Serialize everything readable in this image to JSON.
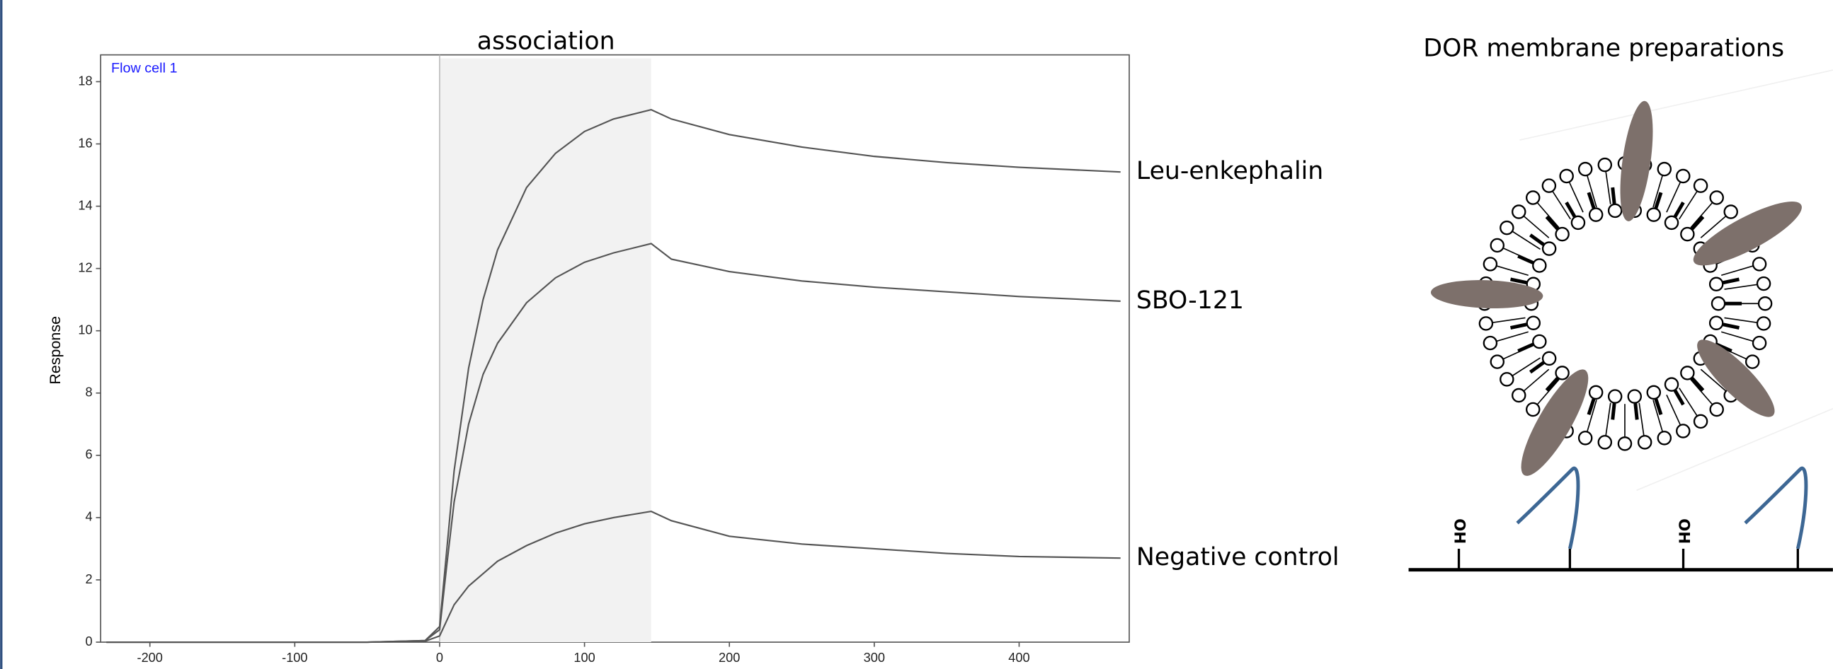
{
  "chart_data": {
    "type": "line",
    "title": "association",
    "annotation": "Flow cell 1",
    "y_label": "Response",
    "x": [
      -230,
      -50,
      -10,
      0,
      5,
      10,
      20,
      30,
      40,
      60,
      80,
      100,
      120,
      146,
      160,
      200,
      250,
      300,
      350,
      400,
      470
    ],
    "series": [
      {
        "name": "Leu-enkephalin",
        "color": "#555555",
        "values": [
          0,
          0,
          0.05,
          0.5,
          3,
          5.5,
          8.8,
          11,
          12.6,
          14.6,
          15.7,
          16.4,
          16.8,
          17.1,
          16.8,
          16.3,
          15.9,
          15.6,
          15.4,
          15.25,
          15.1
        ]
      },
      {
        "name": "SBO-121",
        "color": "#555555",
        "values": [
          0,
          0,
          0.05,
          0.4,
          2.5,
          4.5,
          7,
          8.6,
          9.6,
          10.9,
          11.7,
          12.2,
          12.5,
          12.8,
          12.3,
          11.9,
          11.6,
          11.4,
          11.25,
          11.1,
          10.95
        ]
      },
      {
        "name": "Negative control",
        "color": "#555555",
        "values": [
          0,
          0,
          0.03,
          0.2,
          0.7,
          1.2,
          1.8,
          2.2,
          2.6,
          3.1,
          3.5,
          3.8,
          4.0,
          4.2,
          3.9,
          3.4,
          3.15,
          3.0,
          2.85,
          2.75,
          2.7
        ]
      }
    ],
    "shade": [
      0,
      146
    ],
    "shade_color": "#f2f2f2",
    "xlim": [
      -234,
      476
    ],
    "xticks": [
      -200,
      -100,
      0,
      100,
      200,
      300,
      400
    ],
    "ylim": [
      0,
      18.86
    ],
    "yticks": [
      0,
      2,
      4,
      6,
      8,
      10,
      12,
      14,
      16,
      18
    ],
    "grid": false
  },
  "diagram": {
    "title": "DOR membrane preparations",
    "surface_labels": [
      "OH",
      "OH"
    ]
  }
}
